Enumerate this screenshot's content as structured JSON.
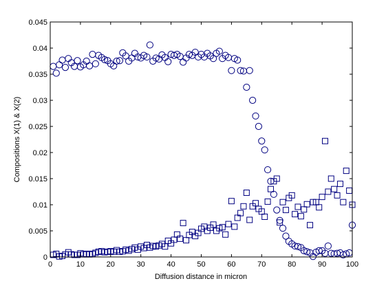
{
  "chart_data": {
    "type": "scatter",
    "xlabel": "Diffusion distance in micron",
    "ylabel": "Compositions X(1) & X(2)",
    "xlim": [
      0,
      100
    ],
    "ylim": [
      0,
      0.045
    ],
    "xticks": [
      0,
      10,
      20,
      30,
      40,
      50,
      60,
      70,
      80,
      90,
      100
    ],
    "xtick_labels": [
      "0",
      "10",
      "20",
      "30",
      "40",
      "50",
      "60",
      "70",
      "80",
      "90",
      "100"
    ],
    "yticks": [
      0,
      0.005,
      0.01,
      0.015,
      0.02,
      0.025,
      0.03,
      0.035,
      0.04,
      0.045
    ],
    "ytick_labels": [
      "0",
      "0.005",
      "0.01",
      "0.015",
      "0.02",
      "0.025",
      "0.03",
      "0.035",
      "0.04",
      "0.045"
    ],
    "grid": false,
    "series": [
      {
        "marker": "circle",
        "color": "#000080",
        "x": [
          1,
          2,
          3,
          4,
          5,
          6,
          7,
          8,
          9,
          10,
          11,
          12,
          13,
          14,
          15,
          16,
          17,
          18,
          19,
          20,
          21,
          22,
          23,
          24,
          25,
          26,
          27,
          28,
          29,
          30,
          31,
          32,
          33,
          34,
          35,
          36,
          37,
          38,
          39,
          40,
          41,
          42,
          43,
          44,
          45,
          46,
          47,
          48,
          49,
          50,
          51,
          52,
          53,
          54,
          55,
          56,
          57,
          58,
          59,
          60,
          61,
          62,
          63,
          64,
          65,
          66,
          67,
          68,
          69,
          70,
          71,
          72,
          73,
          74,
          75,
          76,
          77,
          78,
          79,
          80,
          81,
          82,
          83,
          84,
          85,
          86,
          87,
          88,
          89,
          90,
          91,
          92,
          93,
          94,
          95,
          96,
          97,
          98,
          99,
          100
        ],
        "y": [
          0.0365,
          0.0352,
          0.0368,
          0.0377,
          0.0363,
          0.038,
          0.0372,
          0.0365,
          0.0376,
          0.0364,
          0.0368,
          0.0375,
          0.0366,
          0.0388,
          0.037,
          0.0386,
          0.0382,
          0.0378,
          0.0376,
          0.037,
          0.0366,
          0.0375,
          0.0376,
          0.0391,
          0.0385,
          0.0375,
          0.0381,
          0.039,
          0.0383,
          0.0381,
          0.0386,
          0.0383,
          0.0406,
          0.0375,
          0.0381,
          0.0379,
          0.0387,
          0.0382,
          0.0374,
          0.0388,
          0.0386,
          0.0388,
          0.0384,
          0.0373,
          0.0381,
          0.0388,
          0.0386,
          0.0392,
          0.0383,
          0.0388,
          0.0383,
          0.039,
          0.0385,
          0.038,
          0.039,
          0.0394,
          0.038,
          0.0386,
          0.0382,
          0.0357,
          0.038,
          0.0377,
          0.0357,
          0.0356,
          0.0325,
          0.0357,
          0.03,
          0.027,
          0.025,
          0.0222,
          0.0205,
          0.0167,
          0.0145,
          0.012,
          0.009,
          0.007,
          0.0055,
          0.004,
          0.003,
          0.0025,
          0.0021,
          0.002,
          0.0018,
          0.0012,
          0.001,
          0.0008,
          0.0001,
          0.0009,
          0.0012,
          0.0012,
          0.0007,
          0.0021,
          0.0007,
          0.0006,
          0.0007,
          0.0008,
          0.0004,
          0.0006,
          0.0008,
          0.0061
        ]
      },
      {
        "marker": "square",
        "color": "#000080",
        "x": [
          1,
          2,
          3,
          4,
          5,
          6,
          7,
          8,
          9,
          10,
          11,
          12,
          13,
          14,
          15,
          16,
          17,
          18,
          19,
          20,
          21,
          22,
          23,
          24,
          25,
          26,
          27,
          28,
          29,
          30,
          31,
          32,
          33,
          34,
          35,
          36,
          37,
          38,
          39,
          40,
          41,
          42,
          43,
          44,
          45,
          46,
          47,
          48,
          49,
          50,
          51,
          52,
          53,
          54,
          55,
          56,
          57,
          58,
          59,
          60,
          61,
          62,
          63,
          64,
          65,
          66,
          67,
          68,
          69,
          70,
          71,
          72,
          73,
          74,
          75,
          76,
          77,
          78,
          79,
          80,
          81,
          82,
          83,
          84,
          85,
          86,
          87,
          88,
          89,
          90,
          91,
          92,
          93,
          94,
          95,
          96,
          97,
          98,
          99,
          100
        ],
        "y": [
          0.0004,
          0.0006,
          0.0001,
          0.0002,
          0.0005,
          0.0009,
          0.0005,
          0.0004,
          0.0004,
          0.0007,
          0.0005,
          0.0006,
          0.0005,
          0.0006,
          0.0008,
          0.001,
          0.0011,
          0.0009,
          0.001,
          0.0011,
          0.001,
          0.0013,
          0.001,
          0.0011,
          0.0014,
          0.0012,
          0.0015,
          0.0018,
          0.0014,
          0.002,
          0.0017,
          0.0023,
          0.0018,
          0.0021,
          0.002,
          0.0022,
          0.0025,
          0.002,
          0.0031,
          0.0026,
          0.0033,
          0.0043,
          0.0035,
          0.0065,
          0.0032,
          0.0042,
          0.0048,
          0.004,
          0.0046,
          0.0054,
          0.0058,
          0.005,
          0.0056,
          0.0062,
          0.005,
          0.0055,
          0.0057,
          0.0043,
          0.0063,
          0.0107,
          0.0058,
          0.0075,
          0.0084,
          0.0097,
          0.0123,
          0.0071,
          0.0097,
          0.0103,
          0.0092,
          0.0087,
          0.0077,
          0.0106,
          0.013,
          0.0145,
          0.015,
          0.0066,
          0.0105,
          0.009,
          0.0113,
          0.0118,
          0.0082,
          0.0096,
          0.0078,
          0.0091,
          0.0101,
          0.0061,
          0.0105,
          0.0105,
          0.0095,
          0.0115,
          0.0222,
          0.0125,
          0.015,
          0.013,
          0.0118,
          0.014,
          0.0105,
          0.0165,
          0.0127,
          0.01
        ]
      }
    ]
  }
}
